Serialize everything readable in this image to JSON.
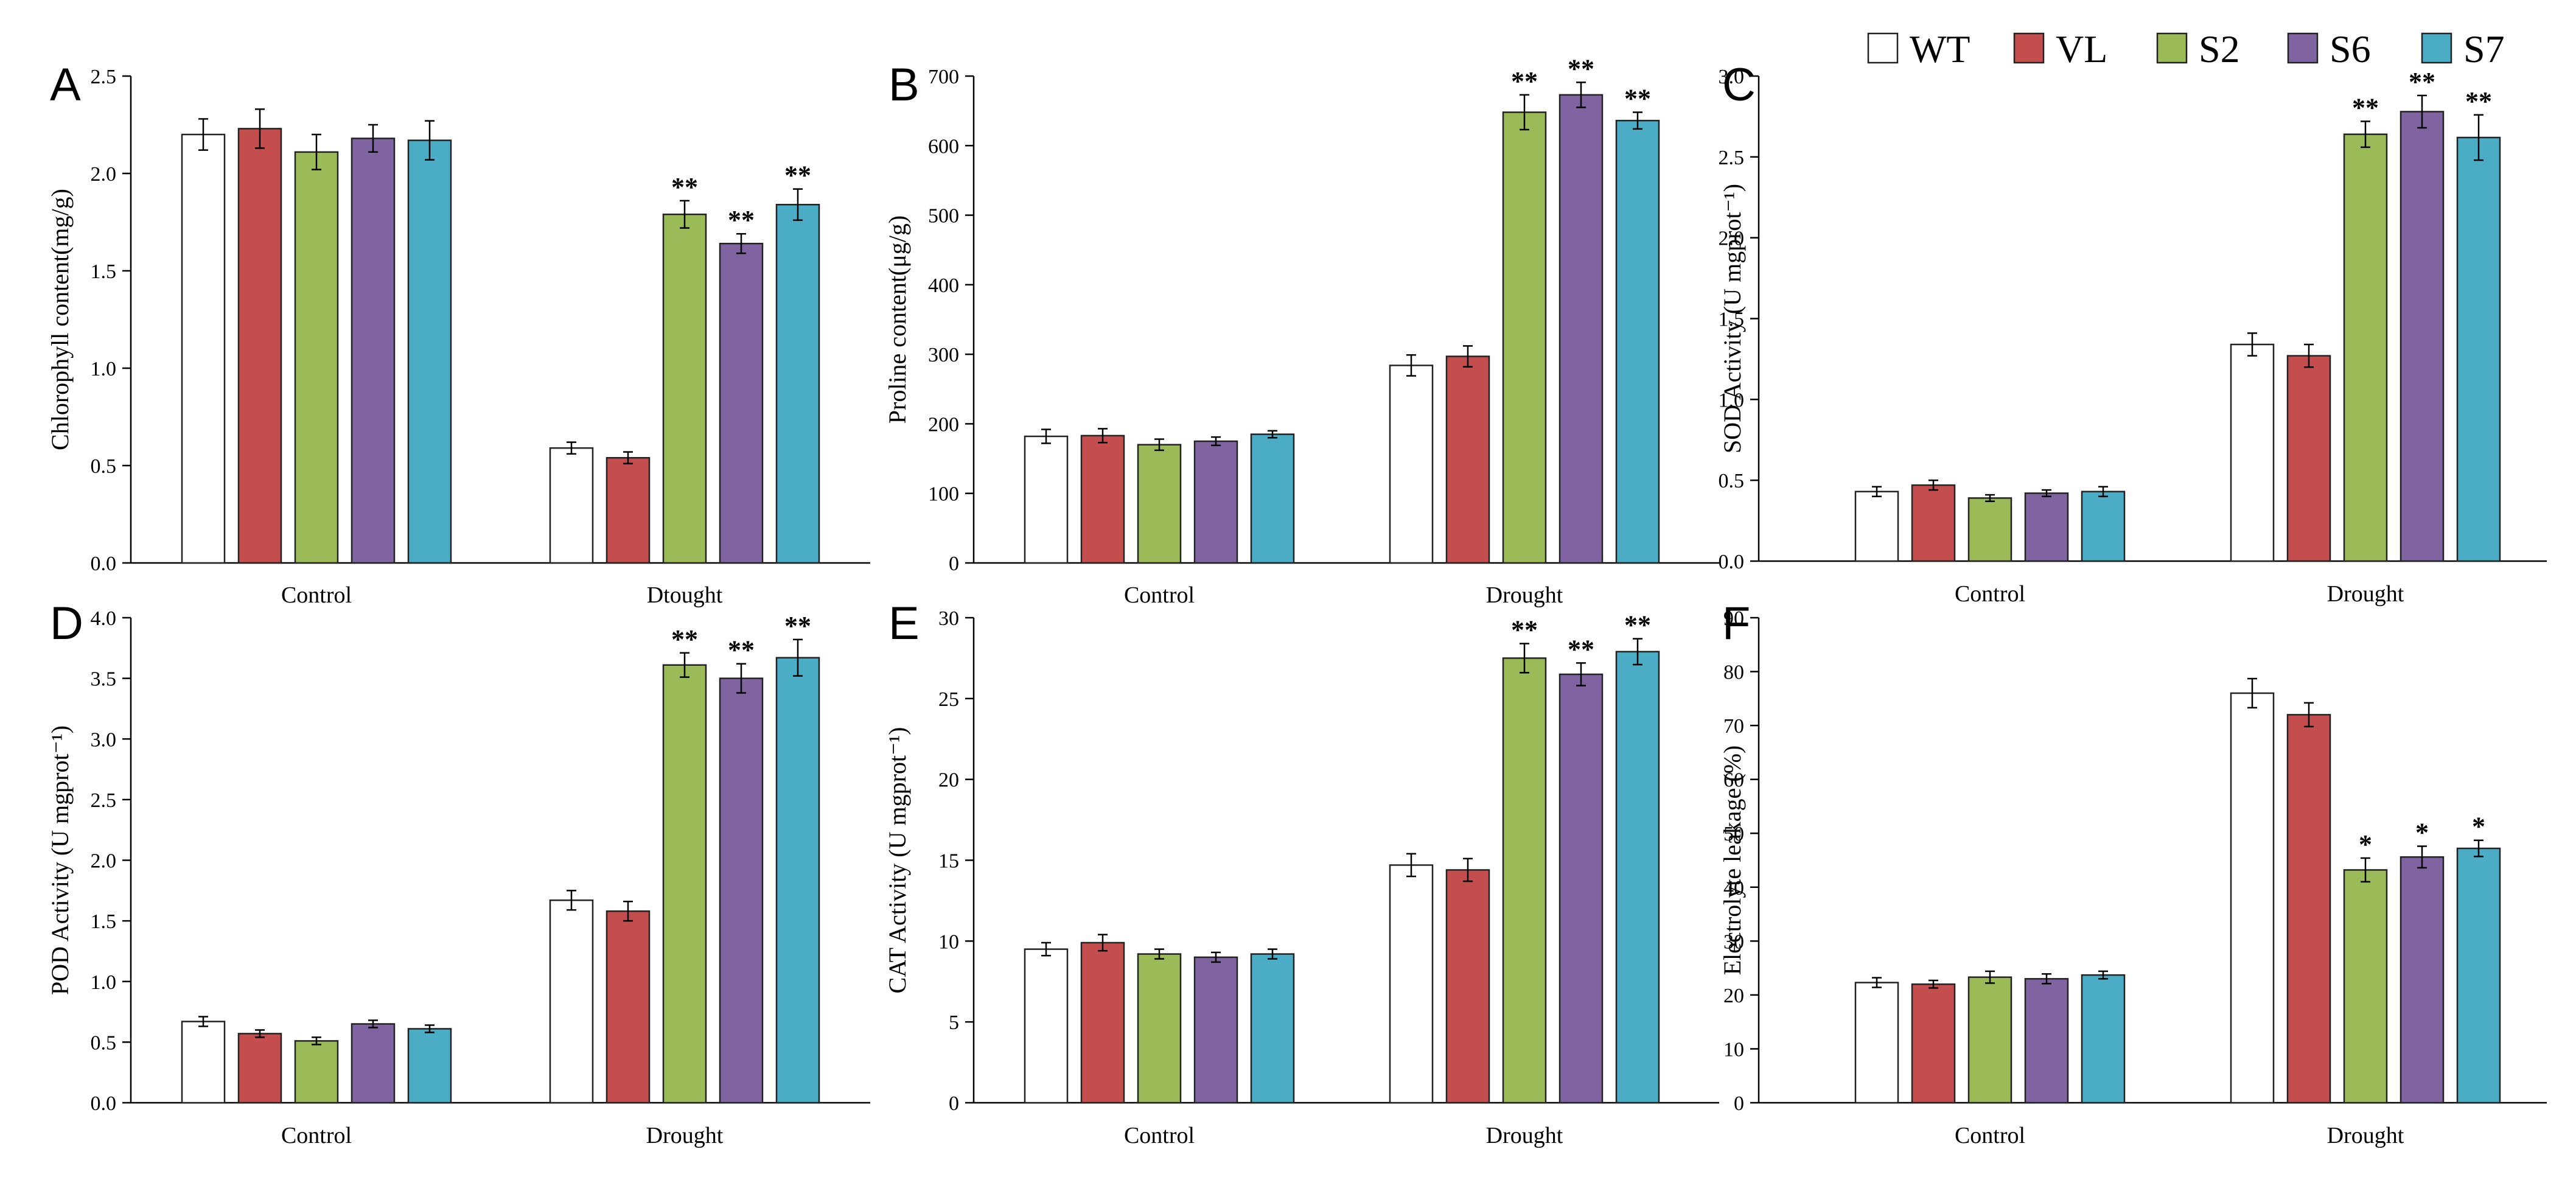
{
  "legend": [
    {
      "name": "WT",
      "color": "#ffffff"
    },
    {
      "name": "VL",
      "color": "#c44e4e"
    },
    {
      "name": "S2",
      "color": "#9bbb59"
    },
    {
      "name": "S6",
      "color": "#8064a2"
    },
    {
      "name": "S7",
      "color": "#4bacc6"
    }
  ],
  "chart_data": [
    {
      "panel": "A",
      "type": "bar",
      "ylabel": "Chlorophyll content(mg/g)",
      "ylim": [
        0,
        2.5
      ],
      "yticks": [
        0,
        0.5,
        1.0,
        1.5,
        2.0,
        2.5
      ],
      "yticklabels": [
        "0.0",
        "0.5",
        "1.0",
        "1.5",
        "2.0",
        "2.5"
      ],
      "categories": [
        "Control",
        "Dtought"
      ],
      "series": [
        {
          "name": "WT",
          "values": [
            2.2,
            0.59
          ],
          "errors": [
            0.08,
            0.03
          ],
          "sig": [
            "",
            ""
          ]
        },
        {
          "name": "VL",
          "values": [
            2.23,
            0.54
          ],
          "errors": [
            0.1,
            0.03
          ],
          "sig": [
            "",
            ""
          ]
        },
        {
          "name": "S2",
          "values": [
            2.11,
            1.79
          ],
          "errors": [
            0.09,
            0.07
          ],
          "sig": [
            "",
            "**"
          ]
        },
        {
          "name": "S6",
          "values": [
            2.18,
            1.64
          ],
          "errors": [
            0.07,
            0.05
          ],
          "sig": [
            "",
            "**"
          ]
        },
        {
          "name": "S7",
          "values": [
            2.17,
            1.84
          ],
          "errors": [
            0.1,
            0.08
          ],
          "sig": [
            "",
            "**"
          ]
        }
      ]
    },
    {
      "panel": "B",
      "type": "bar",
      "ylabel": "Proline content(μg/g)",
      "ylim": [
        0,
        700
      ],
      "yticks": [
        0,
        100,
        200,
        300,
        400,
        500,
        600,
        700
      ],
      "yticklabels": [
        "0",
        "100",
        "200",
        "300",
        "400",
        "500",
        "600",
        "700"
      ],
      "categories": [
        "Control",
        "Drought"
      ],
      "series": [
        {
          "name": "WT",
          "values": [
            182,
            284
          ],
          "errors": [
            10,
            15
          ],
          "sig": [
            "",
            ""
          ]
        },
        {
          "name": "VL",
          "values": [
            183,
            297
          ],
          "errors": [
            10,
            15
          ],
          "sig": [
            "",
            ""
          ]
        },
        {
          "name": "S2",
          "values": [
            170,
            648
          ],
          "errors": [
            8,
            25
          ],
          "sig": [
            "",
            "**"
          ]
        },
        {
          "name": "S6",
          "values": [
            175,
            673
          ],
          "errors": [
            6,
            18
          ],
          "sig": [
            "",
            "**"
          ]
        },
        {
          "name": "S7",
          "values": [
            185,
            636
          ],
          "errors": [
            5,
            12
          ],
          "sig": [
            "",
            "**"
          ]
        }
      ]
    },
    {
      "panel": "C",
      "type": "bar",
      "ylabel": "SOD Activity (U mgprot⁻¹)",
      "ylim": [
        0,
        3.0
      ],
      "yticks": [
        0,
        0.5,
        1.0,
        1.5,
        2.0,
        2.5,
        3.0
      ],
      "yticklabels": [
        "0.0",
        "0.5",
        "1.0",
        "1.5",
        "2.0",
        "2.5",
        "3.0"
      ],
      "categories": [
        "Control",
        "Drought"
      ],
      "series": [
        {
          "name": "WT",
          "values": [
            0.43,
            1.34
          ],
          "errors": [
            0.03,
            0.07
          ],
          "sig": [
            "",
            ""
          ]
        },
        {
          "name": "VL",
          "values": [
            0.47,
            1.27
          ],
          "errors": [
            0.03,
            0.07
          ],
          "sig": [
            "",
            ""
          ]
        },
        {
          "name": "S2",
          "values": [
            0.39,
            2.64
          ],
          "errors": [
            0.02,
            0.08
          ],
          "sig": [
            "",
            "**"
          ]
        },
        {
          "name": "S6",
          "values": [
            0.42,
            2.78
          ],
          "errors": [
            0.02,
            0.1
          ],
          "sig": [
            "",
            "**"
          ]
        },
        {
          "name": "S7",
          "values": [
            0.43,
            2.62
          ],
          "errors": [
            0.03,
            0.14
          ],
          "sig": [
            "",
            "**"
          ]
        }
      ]
    },
    {
      "panel": "D",
      "type": "bar",
      "ylabel": "POD Activity (U mgprot⁻¹)",
      "ylim": [
        0,
        4.0
      ],
      "yticks": [
        0,
        0.5,
        1.0,
        1.5,
        2.0,
        2.5,
        3.0,
        3.5,
        4.0
      ],
      "yticklabels": [
        "0.0",
        "0.5",
        "1.0",
        "1.5",
        "2.0",
        "2.5",
        "3.0",
        "3.5",
        "4.0"
      ],
      "categories": [
        "Control",
        "Drought"
      ],
      "series": [
        {
          "name": "WT",
          "values": [
            0.67,
            1.67
          ],
          "errors": [
            0.04,
            0.08
          ],
          "sig": [
            "",
            ""
          ]
        },
        {
          "name": "VL",
          "values": [
            0.57,
            1.58
          ],
          "errors": [
            0.03,
            0.08
          ],
          "sig": [
            "",
            ""
          ]
        },
        {
          "name": "S2",
          "values": [
            0.51,
            3.61
          ],
          "errors": [
            0.03,
            0.1
          ],
          "sig": [
            "",
            "**"
          ]
        },
        {
          "name": "S6",
          "values": [
            0.65,
            3.5
          ],
          "errors": [
            0.03,
            0.12
          ],
          "sig": [
            "",
            "**"
          ]
        },
        {
          "name": "S7",
          "values": [
            0.61,
            3.67
          ],
          "errors": [
            0.03,
            0.15
          ],
          "sig": [
            "",
            "**"
          ]
        }
      ]
    },
    {
      "panel": "E",
      "type": "bar",
      "ylabel": "CAT Activity (U mgprot⁻¹)",
      "ylim": [
        0,
        30
      ],
      "yticks": [
        0,
        5,
        10,
        15,
        20,
        25,
        30
      ],
      "yticklabels": [
        "0",
        "5",
        "10",
        "15",
        "20",
        "25",
        "30"
      ],
      "categories": [
        "Control",
        "Drought"
      ],
      "series": [
        {
          "name": "WT",
          "values": [
            9.5,
            14.7
          ],
          "errors": [
            0.4,
            0.7
          ],
          "sig": [
            "",
            ""
          ]
        },
        {
          "name": "VL",
          "values": [
            9.9,
            14.4
          ],
          "errors": [
            0.5,
            0.7
          ],
          "sig": [
            "",
            ""
          ]
        },
        {
          "name": "S2",
          "values": [
            9.2,
            27.5
          ],
          "errors": [
            0.3,
            0.9
          ],
          "sig": [
            "",
            "**"
          ]
        },
        {
          "name": "S6",
          "values": [
            9.0,
            26.5
          ],
          "errors": [
            0.3,
            0.7
          ],
          "sig": [
            "",
            "**"
          ]
        },
        {
          "name": "S7",
          "values": [
            9.2,
            27.9
          ],
          "errors": [
            0.3,
            0.8
          ],
          "sig": [
            "",
            "**"
          ]
        }
      ]
    },
    {
      "panel": "F",
      "type": "bar",
      "ylabel": "Electrolyte leakage (%)",
      "ylim": [
        0,
        90
      ],
      "yticks": [
        0,
        10,
        20,
        30,
        40,
        50,
        60,
        70,
        80,
        90
      ],
      "yticklabels": [
        "0",
        "10",
        "20",
        "30",
        "40",
        "50",
        "60",
        "70",
        "80",
        "90"
      ],
      "categories": [
        "Control",
        "Drought"
      ],
      "series": [
        {
          "name": "WT",
          "values": [
            22.3,
            76.0
          ],
          "errors": [
            0.9,
            2.7
          ],
          "sig": [
            "",
            ""
          ]
        },
        {
          "name": "VL",
          "values": [
            22.0,
            72.0
          ],
          "errors": [
            0.7,
            2.2
          ],
          "sig": [
            "",
            ""
          ]
        },
        {
          "name": "S2",
          "values": [
            23.3,
            43.2
          ],
          "errors": [
            1.1,
            2.2
          ],
          "sig": [
            "",
            "*"
          ]
        },
        {
          "name": "S6",
          "values": [
            23.0,
            45.6
          ],
          "errors": [
            0.9,
            2.0
          ],
          "sig": [
            "",
            "*"
          ]
        },
        {
          "name": "S7",
          "values": [
            23.7,
            47.2
          ],
          "errors": [
            0.7,
            1.5
          ],
          "sig": [
            "",
            "*"
          ]
        }
      ]
    }
  ]
}
